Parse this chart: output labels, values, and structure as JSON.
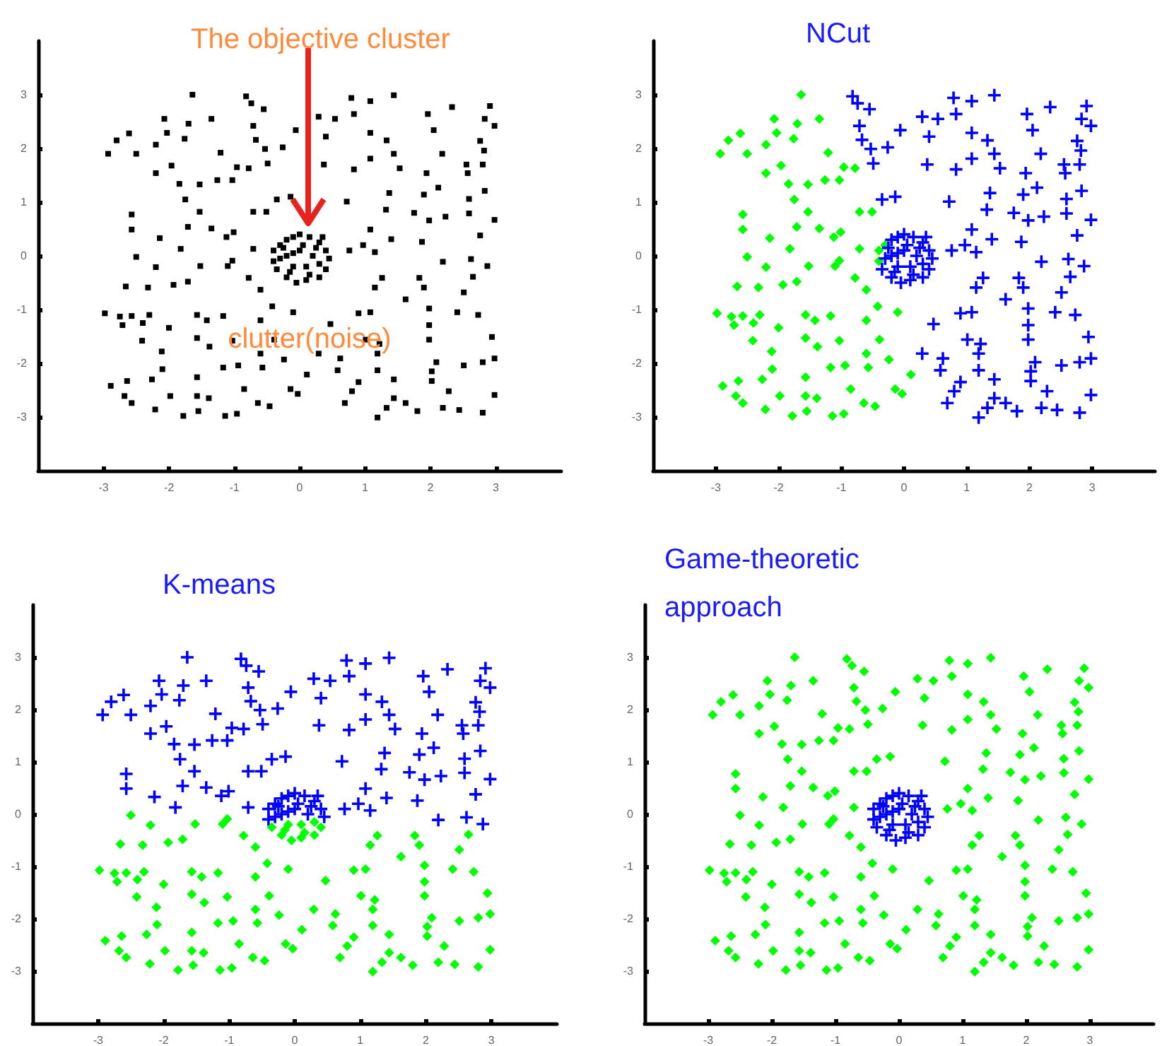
{
  "chart_data": [
    {
      "type": "scatter",
      "title": "The objective cluster",
      "xlim": [
        -4,
        4
      ],
      "ylim": [
        -4,
        4
      ],
      "xticks": [
        -3,
        -2,
        -1,
        0,
        1,
        2,
        3
      ],
      "yticks": [
        -3,
        -2,
        -1,
        0,
        1,
        2,
        3
      ],
      "marker": "square",
      "annotations": [
        "clutter(noise)"
      ],
      "series": [
        {
          "color": "#000000",
          "x": [
            -1.64,
            -0.82,
            -0.74,
            -0.55,
            0.79,
            1.08,
            1.44,
            2.91,
            2.33,
            1.96,
            0.83,
            0.29,
            0.54,
            -2.07,
            -1.35,
            -1.7,
            2.83,
            2.98,
            -0.71,
            -0.06,
            -2.61,
            -2.03,
            1.08,
            2.05,
            -2.8,
            -2.2,
            -1.76,
            -0.67,
            0.4,
            1.33,
            2.76,
            -2.93,
            -2.5,
            -1.21,
            -0.53,
            -0.26,
            1.44,
            2.18,
            2.82,
            -1.96,
            -0.96,
            -0.78,
            -0.49,
            0.37,
            1.08,
            1.94,
            2.55,
            2.8,
            -2.2,
            -1.26,
            -1.03,
            1.53,
            0.83,
            -1.84,
            -1.53,
            2.12,
            2.57,
            2.83,
            1.37,
            1.9,
            -1.75,
            -0.14,
            -0.35,
            0.72,
            2.59,
            -2.57,
            -1.53,
            -0.71,
            -0.51,
            1.32,
            1.75,
            2.23,
            2.59,
            1.98,
            2.98,
            -2.57,
            -1.71,
            -1.35,
            -1.01,
            -2.14,
            -1.12,
            1.08,
            2.76,
            1.4,
            1.87,
            -2.5,
            -1.82,
            -1.03,
            -0.71,
            0.76,
            0.97,
            1.15,
            2.19,
            2.62,
            2.87,
            -2.2,
            -1.52,
            -1.1,
            -0.78,
            1.26,
            1.83,
            2.65,
            -2.66,
            -2.32,
            -1.93,
            -1.71,
            -0.6,
            1.15,
            1.9,
            2.51,
            -2.98,
            -2.75,
            -2.57,
            -2.3,
            -1.57,
            -1.17,
            -0.42,
            -0.1,
            0.9,
            1.08,
            1.62,
            1.98,
            2.41,
            2.73,
            -2.71,
            -2.4,
            -2,
            -1.42,
            -0.6,
            0.47,
            1.98,
            -2.41,
            -1.57,
            -1.03,
            -0.39,
            1.01,
            1.22,
            1.98,
            2.94,
            -2.11,
            -1.38,
            -0.6,
            0.29,
            0.62,
            1.19,
            -1.17,
            -0.94,
            -0.57,
            -0.24,
            2.09,
            2.51,
            2.8,
            2.98,
            -2.1,
            0.11,
            0.58,
            1.19,
            2.02,
            -2.89,
            -2.64,
            -2.26,
            -1.57,
            -0.85,
            -0.14,
            -0.03,
            0.8,
            0.9,
            1.44,
            2.02,
            2.28,
            2.98,
            -2.68,
            -1.98,
            -1.57,
            -1.39,
            -0.64,
            -0.46,
            0.69,
            1.44,
            1.62,
            2.19,
            -2.57,
            -2.21,
            -1.78,
            -1.55,
            -1.14,
            -0.96,
            1.19,
            1.33,
            1.8,
            2.44,
            2.8,
            -0.4,
            -0.3,
            -0.2,
            -0.1,
            0,
            0.15,
            0.3,
            0.4,
            0.45,
            0.4,
            0.3,
            0.1,
            -0.05,
            -0.2,
            -0.35,
            -0.4,
            -0.2,
            0,
            0.2,
            0.1,
            -0.1,
            0.25,
            -0.25,
            0.05,
            0.3,
            -0.1,
            0.15,
            -0.3,
            0.35,
            -0.15
          ],
          "values": [
            3,
            2.97,
            2.84,
            2.73,
            2.94,
            2.88,
            2.99,
            2.79,
            2.77,
            2.64,
            2.64,
            2.59,
            2.55,
            2.55,
            2.55,
            2.46,
            2.55,
            2.42,
            2.42,
            2.34,
            2.28,
            2.29,
            2.29,
            2.34,
            2.15,
            2.07,
            2.18,
            2.16,
            2.22,
            2.15,
            2.14,
            1.9,
            1.9,
            1.92,
            1.99,
            2.02,
            1.9,
            1.9,
            1.96,
            1.68,
            1.65,
            1.63,
            1.72,
            1.7,
            1.81,
            1.54,
            1.7,
            1.7,
            1.54,
            1.41,
            1.41,
            1.63,
            1.61,
            1.34,
            1.33,
            1.27,
            1.54,
            1.21,
            1.17,
            1.14,
            1.05,
            1.1,
            1.05,
            1.01,
            1.06,
            0.77,
            0.82,
            0.82,
            0.82,
            0.86,
            0.8,
            0.73,
            0.79,
            0.66,
            0.67,
            0.49,
            0.54,
            0.51,
            0.44,
            0.33,
            0.35,
            0.49,
            0.38,
            0.31,
            0.26,
            -0.02,
            0.13,
            -0.09,
            0.13,
            0.1,
            0.2,
            0.07,
            -0.11,
            -0.06,
            -0.19,
            -0.21,
            -0.19,
            -0.19,
            -0.41,
            -0.41,
            -0.41,
            -0.39,
            -0.57,
            -0.59,
            -0.54,
            -0.48,
            -0.63,
            -0.59,
            -0.59,
            -0.68,
            -1.07,
            -1.13,
            -1.12,
            -1.1,
            -1.1,
            -1.12,
            -0.94,
            -1.05,
            -1.07,
            -1.05,
            -0.81,
            -0.98,
            -1.05,
            -1.1,
            -1.29,
            -1.25,
            -1.34,
            -1.2,
            -1.2,
            -1.27,
            -1.29,
            -1.58,
            -1.53,
            -1.58,
            -1.56,
            -1.56,
            -1.64,
            -1.56,
            -1.51,
            -1.78,
            -1.69,
            -1.82,
            -1.82,
            -1.91,
            -1.82,
            -2.08,
            -2.04,
            -2.08,
            -1.93,
            -1.98,
            -2.04,
            -1.98,
            -1.91,
            -2.11,
            -2.21,
            -2.13,
            -2.13,
            -2.15,
            -2.42,
            -2.33,
            -2.3,
            -2.26,
            -2.48,
            -2.48,
            -2.57,
            -2.52,
            -2.35,
            -2.3,
            -2.33,
            -2.52,
            -2.59,
            -2.61,
            -2.61,
            -2.61,
            -2.65,
            -2.74,
            -2.8,
            -2.74,
            -2.65,
            -2.74,
            -2.83,
            -2.74,
            -2.86,
            -2.98,
            -2.89,
            -2.98,
            -2.94,
            -3.01,
            -2.83,
            -2.89,
            -2.87,
            -2.92,
            0.1,
            0.2,
            0.3,
            0.35,
            0.4,
            0.35,
            0.25,
            0.1,
            -0.05,
            -0.25,
            -0.4,
            -0.45,
            -0.5,
            -0.4,
            -0.25,
            -0.1,
            0,
            0.1,
            0,
            -0.2,
            -0.2,
            0.15,
            0.15,
            0.2,
            -0.15,
            0.05,
            -0.35,
            -0.05,
            0.35,
            -0.3
          ]
        }
      ]
    },
    {
      "type": "scatter",
      "title": "NCut",
      "xlim": [
        -4,
        4
      ],
      "ylim": [
        -4,
        4
      ],
      "xticks": [
        -3,
        -2,
        -1,
        0,
        1,
        2,
        3
      ],
      "yticks": [
        -3,
        -2,
        -1,
        0,
        1,
        2,
        3
      ],
      "series": [
        {
          "color": "#00ff00",
          "marker": "diamond",
          "x": [
            -1.64,
            -2.07,
            -1.35,
            -1.7,
            -2.61,
            -2.03,
            -2.8,
            -2.2,
            -1.76,
            -2.93,
            -2.5,
            -1.21,
            -1.96,
            -0.96,
            -0.78,
            -2.2,
            -1.26,
            -1.03,
            -1.84,
            -1.53,
            -1.75,
            -2.57,
            -1.53,
            -0.71,
            -0.51,
            -2.57,
            -1.71,
            -1.35,
            -1.01,
            -2.14,
            -1.12,
            -2.5,
            -1.82,
            -1.03,
            -0.71,
            -2.2,
            -1.52,
            -1.1,
            -0.78,
            -2.66,
            -2.32,
            -1.93,
            -1.71,
            -0.6,
            -2.98,
            -2.75,
            -2.57,
            -2.3,
            -1.57,
            -1.17,
            -0.42,
            -0.1,
            -2.71,
            -2.4,
            -2,
            -1.42,
            -0.6,
            -2.41,
            -1.57,
            -1.03,
            -0.39,
            -2.11,
            -1.38,
            -0.6,
            -1.17,
            -0.94,
            -0.57,
            -0.24,
            -2.1,
            0.11,
            -2.89,
            -2.64,
            -2.26,
            -1.57,
            -0.85,
            -0.14,
            -0.03,
            -2.68,
            -1.98,
            -1.57,
            -1.39,
            -0.64,
            -0.46,
            -2.57,
            -2.21,
            -1.78,
            -1.55,
            -1.14,
            -0.96,
            -0.4,
            -0.3,
            -0.4
          ],
          "values": [
            3,
            2.55,
            2.55,
            2.46,
            2.28,
            2.29,
            2.15,
            2.07,
            2.18,
            1.9,
            1.9,
            1.92,
            1.68,
            1.65,
            1.63,
            1.54,
            1.41,
            1.41,
            1.34,
            1.33,
            1.05,
            0.77,
            0.82,
            0.82,
            0.82,
            0.49,
            0.54,
            0.51,
            0.44,
            0.33,
            0.35,
            -0.02,
            0.13,
            -0.09,
            0.13,
            -0.21,
            -0.19,
            -0.19,
            -0.41,
            -0.57,
            -0.59,
            -0.54,
            -0.48,
            -0.63,
            -1.07,
            -1.13,
            -1.12,
            -1.1,
            -1.1,
            -1.12,
            -0.94,
            -1.05,
            -1.29,
            -1.25,
            -1.34,
            -1.2,
            -1.2,
            -1.58,
            -1.53,
            -1.58,
            -1.56,
            -1.78,
            -1.69,
            -1.82,
            -2.08,
            -2.04,
            -2.08,
            -1.93,
            -2.11,
            -2.21,
            -2.42,
            -2.33,
            -2.3,
            -2.26,
            -2.48,
            -2.48,
            -2.57,
            -2.61,
            -2.61,
            -2.61,
            -2.65,
            -2.74,
            -2.8,
            -2.74,
            -2.86,
            -2.98,
            -2.89,
            -2.98,
            -2.94,
            0.1,
            0.2,
            -0.1
          ]
        },
        {
          "color": "#0000ff",
          "marker": "cross",
          "x": [
            -0.82,
            -0.74,
            -0.55,
            0.79,
            1.08,
            1.44,
            2.91,
            2.33,
            1.96,
            0.83,
            0.29,
            0.54,
            2.83,
            2.98,
            -0.71,
            -0.06,
            1.08,
            2.05,
            -0.67,
            0.4,
            1.33,
            2.76,
            -0.53,
            -0.26,
            1.44,
            2.18,
            2.82,
            -0.49,
            0.37,
            1.08,
            1.94,
            2.55,
            2.8,
            1.53,
            0.83,
            2.12,
            2.57,
            2.83,
            1.37,
            1.9,
            -0.14,
            -0.35,
            0.72,
            2.59,
            1.32,
            1.75,
            2.23,
            2.59,
            1.98,
            2.98,
            1.08,
            2.76,
            1.4,
            1.87,
            0.76,
            0.97,
            1.15,
            2.19,
            2.62,
            2.87,
            1.26,
            1.83,
            2.65,
            1.15,
            1.9,
            2.51,
            0.9,
            1.08,
            1.62,
            1.98,
            2.41,
            2.73,
            0.47,
            1.98,
            1.01,
            1.22,
            1.98,
            2.94,
            0.29,
            0.62,
            1.19,
            2.09,
            2.51,
            2.8,
            2.98,
            0.58,
            1.19,
            2.02,
            0.8,
            0.9,
            1.44,
            2.02,
            2.28,
            2.98,
            0.69,
            1.44,
            1.62,
            2.19,
            1.19,
            1.33,
            1.8,
            2.44,
            2.8,
            -0.2,
            -0.1,
            0,
            0.15,
            0.3,
            0.4,
            0.45,
            0.4,
            0.3,
            0.1,
            -0.05,
            -0.2,
            -0.35,
            -0.2,
            0,
            0.2,
            0.1,
            -0.1,
            0.25,
            -0.25,
            0.05,
            0.3,
            -0.1,
            0.15,
            -0.3,
            0.35,
            -0.15
          ],
          "values": [
            2.97,
            2.84,
            2.73,
            2.94,
            2.88,
            2.99,
            2.79,
            2.77,
            2.64,
            2.64,
            2.59,
            2.55,
            2.55,
            2.42,
            2.42,
            2.34,
            2.29,
            2.34,
            2.16,
            2.22,
            2.15,
            2.14,
            1.99,
            2.02,
            1.9,
            1.9,
            1.96,
            1.72,
            1.7,
            1.81,
            1.54,
            1.7,
            1.7,
            1.63,
            1.61,
            1.27,
            1.54,
            1.21,
            1.17,
            1.14,
            1.1,
            1.05,
            1.01,
            1.06,
            0.86,
            0.8,
            0.73,
            0.79,
            0.66,
            0.67,
            0.49,
            0.38,
            0.31,
            0.26,
            0.1,
            0.2,
            0.07,
            -0.11,
            -0.06,
            -0.19,
            -0.41,
            -0.41,
            -0.39,
            -0.59,
            -0.59,
            -0.68,
            -1.07,
            -1.05,
            -0.81,
            -0.98,
            -1.05,
            -1.1,
            -1.27,
            -1.29,
            -1.56,
            -1.64,
            -1.56,
            -1.51,
            -1.82,
            -1.91,
            -1.82,
            -1.98,
            -2.04,
            -1.98,
            -1.91,
            -2.13,
            -2.13,
            -2.15,
            -2.52,
            -2.35,
            -2.3,
            -2.33,
            -2.52,
            -2.59,
            -2.74,
            -2.65,
            -2.74,
            -2.83,
            -3.01,
            -2.83,
            -2.89,
            -2.87,
            -2.92,
            0.3,
            0.35,
            0.4,
            0.35,
            0.25,
            0.1,
            -0.05,
            -0.25,
            -0.4,
            -0.45,
            -0.5,
            -0.4,
            -0.25,
            0,
            0.1,
            0,
            -0.2,
            -0.2,
            0.15,
            0.15,
            0.2,
            -0.15,
            0.05,
            -0.35,
            -0.05,
            0.35,
            -0.3
          ]
        }
      ]
    },
    {
      "type": "scatter",
      "title": "K-means",
      "xlim": [
        -4,
        4
      ],
      "ylim": [
        -4,
        4
      ],
      "xticks": [
        -3,
        -2,
        -1,
        0,
        1,
        2,
        3
      ],
      "yticks": [
        -3,
        -2,
        -1,
        0,
        1,
        2,
        3
      ],
      "series": [
        {
          "color": "#0000ff",
          "marker": "cross",
          "x": [
            -1.64,
            -0.82,
            -0.74,
            -0.55,
            0.79,
            1.08,
            1.44,
            2.91,
            2.33,
            1.96,
            0.83,
            0.29,
            0.54,
            -2.07,
            -1.35,
            -1.7,
            2.83,
            2.98,
            -0.71,
            -0.06,
            -2.61,
            -2.03,
            1.08,
            2.05,
            -2.8,
            -2.2,
            -1.76,
            -0.67,
            0.4,
            1.33,
            2.76,
            -2.93,
            -2.5,
            -1.21,
            -0.53,
            -0.26,
            1.44,
            2.18,
            2.82,
            -1.96,
            -0.96,
            -0.78,
            -0.49,
            0.37,
            1.08,
            1.94,
            2.55,
            2.8,
            -2.2,
            -1.26,
            -1.03,
            1.53,
            0.83,
            -1.84,
            -1.53,
            2.12,
            2.57,
            2.83,
            1.37,
            1.9,
            -1.75,
            -0.14,
            -0.35,
            0.72,
            2.59,
            -2.57,
            -1.53,
            -0.71,
            -0.51,
            1.32,
            1.75,
            2.23,
            2.59,
            1.98,
            2.98,
            -2.57,
            -1.71,
            -1.35,
            -1.01,
            -2.14,
            -1.12,
            1.08,
            2.76,
            1.4,
            1.87,
            -1.82,
            -0.71,
            0.76,
            0.97,
            1.15,
            2.19,
            2.62,
            2.87,
            -0.4,
            -0.3,
            -0.2,
            -0.1,
            0,
            0.15,
            0.3,
            0.4,
            0.45,
            -0.4,
            -0.2,
            0,
            0.2,
            0.25,
            -0.25,
            0.05,
            -0.1,
            -0.3,
            0.35
          ],
          "values": [
            3,
            2.97,
            2.84,
            2.73,
            2.94,
            2.88,
            2.99,
            2.79,
            2.77,
            2.64,
            2.64,
            2.59,
            2.55,
            2.55,
            2.55,
            2.46,
            2.55,
            2.42,
            2.42,
            2.34,
            2.28,
            2.29,
            2.29,
            2.34,
            2.15,
            2.07,
            2.18,
            2.16,
            2.22,
            2.15,
            2.14,
            1.9,
            1.9,
            1.92,
            1.99,
            2.02,
            1.9,
            1.9,
            1.96,
            1.68,
            1.65,
            1.63,
            1.72,
            1.7,
            1.81,
            1.54,
            1.7,
            1.7,
            1.54,
            1.41,
            1.41,
            1.63,
            1.61,
            1.34,
            1.33,
            1.27,
            1.54,
            1.21,
            1.17,
            1.14,
            1.05,
            1.1,
            1.05,
            1.01,
            1.06,
            0.77,
            0.82,
            0.82,
            0.82,
            0.86,
            0.8,
            0.73,
            0.79,
            0.66,
            0.67,
            0.49,
            0.54,
            0.51,
            0.44,
            0.33,
            0.35,
            0.49,
            0.38,
            0.31,
            0.26,
            0.13,
            0.13,
            0.1,
            0.2,
            0.07,
            -0.11,
            -0.06,
            -0.19,
            0.1,
            0.2,
            0.3,
            0.35,
            0.4,
            0.35,
            0.25,
            0.1,
            -0.05,
            -0.1,
            0,
            0.1,
            0,
            0.15,
            0.15,
            0.2,
            0.05,
            -0.05,
            0.35
          ]
        },
        {
          "color": "#00ff00",
          "marker": "diamond",
          "x": [
            -2.5,
            -1.03,
            -2.2,
            -1.52,
            -1.1,
            -0.78,
            1.26,
            1.83,
            2.65,
            -2.66,
            -2.32,
            -1.93,
            -1.71,
            -0.6,
            1.15,
            1.9,
            2.51,
            -2.98,
            -2.75,
            -2.57,
            -2.3,
            -1.57,
            -1.17,
            -0.42,
            -0.1,
            0.9,
            1.08,
            1.62,
            1.98,
            2.41,
            2.73,
            -2.71,
            -2.4,
            -2,
            -1.42,
            -0.6,
            0.47,
            1.98,
            -2.41,
            -1.57,
            -1.03,
            -0.39,
            1.01,
            1.22,
            1.98,
            2.94,
            -2.11,
            -1.38,
            -0.6,
            0.29,
            0.62,
            1.19,
            -1.17,
            -0.94,
            -0.57,
            -0.24,
            2.09,
            2.51,
            2.8,
            2.98,
            -2.1,
            0.11,
            0.58,
            1.19,
            2.02,
            -2.89,
            -2.64,
            -2.26,
            -1.57,
            -0.85,
            -0.14,
            -0.03,
            0.8,
            0.9,
            1.44,
            2.02,
            2.28,
            2.98,
            -2.68,
            -1.98,
            -1.57,
            -1.39,
            -0.64,
            -0.46,
            0.69,
            1.44,
            1.62,
            2.19,
            -2.57,
            -2.21,
            -1.78,
            -1.55,
            -1.14,
            -0.96,
            1.19,
            1.33,
            1.8,
            2.44,
            2.8,
            0.4,
            0.3,
            0.1,
            -0.05,
            -0.2,
            -0.35,
            0.1,
            -0.1,
            0.3,
            0.15,
            -0.15
          ],
          "values": [
            -0.02,
            -0.09,
            -0.21,
            -0.19,
            -0.19,
            -0.41,
            -0.41,
            -0.41,
            -0.39,
            -0.57,
            -0.59,
            -0.54,
            -0.48,
            -0.63,
            -0.59,
            -0.59,
            -0.68,
            -1.07,
            -1.13,
            -1.12,
            -1.1,
            -1.1,
            -1.12,
            -0.94,
            -1.05,
            -1.07,
            -1.05,
            -0.81,
            -0.98,
            -1.05,
            -1.1,
            -1.29,
            -1.25,
            -1.34,
            -1.2,
            -1.2,
            -1.27,
            -1.29,
            -1.58,
            -1.53,
            -1.58,
            -1.56,
            -1.56,
            -1.64,
            -1.56,
            -1.51,
            -1.78,
            -1.69,
            -1.82,
            -1.82,
            -1.91,
            -1.82,
            -2.08,
            -2.04,
            -2.08,
            -1.93,
            -1.98,
            -2.04,
            -1.98,
            -1.91,
            -2.11,
            -2.21,
            -2.13,
            -2.13,
            -2.15,
            -2.42,
            -2.33,
            -2.3,
            -2.26,
            -2.48,
            -2.48,
            -2.57,
            -2.52,
            -2.35,
            -2.3,
            -2.33,
            -2.52,
            -2.59,
            -2.61,
            -2.61,
            -2.61,
            -2.65,
            -2.74,
            -2.8,
            -2.74,
            -2.65,
            -2.74,
            -2.83,
            -2.74,
            -2.86,
            -2.98,
            -2.89,
            -2.98,
            -2.94,
            -3.01,
            -2.83,
            -2.89,
            -2.87,
            -2.92,
            -0.25,
            -0.4,
            -0.45,
            -0.5,
            -0.4,
            -0.25,
            -0.2,
            -0.2,
            -0.15,
            -0.35,
            -0.3
          ]
        }
      ]
    },
    {
      "type": "scatter",
      "title": "Game-theoretic approach",
      "xlim": [
        -4,
        4
      ],
      "ylim": [
        -4,
        4
      ],
      "xticks": [
        -3,
        -2,
        -1,
        0,
        1,
        2,
        3
      ],
      "yticks": [
        -3,
        -2,
        -1,
        0,
        1,
        2,
        3
      ],
      "series": [
        {
          "color": "#00ff00",
          "marker": "diamond",
          "x": [
            -1.64,
            -0.82,
            -0.74,
            -0.55,
            0.79,
            1.08,
            1.44,
            2.91,
            2.33,
            1.96,
            0.83,
            0.29,
            0.54,
            -2.07,
            -1.35,
            -1.7,
            2.83,
            2.98,
            -0.71,
            -0.06,
            -2.61,
            -2.03,
            1.08,
            2.05,
            -2.8,
            -2.2,
            -1.76,
            -0.67,
            0.4,
            1.33,
            2.76,
            -2.93,
            -2.5,
            -1.21,
            -0.53,
            -0.26,
            1.44,
            2.18,
            2.82,
            -1.96,
            -0.96,
            -0.78,
            -0.49,
            0.37,
            1.08,
            1.94,
            2.55,
            2.8,
            -2.2,
            -1.26,
            -1.03,
            1.53,
            0.83,
            -1.84,
            -1.53,
            2.12,
            2.57,
            2.83,
            1.37,
            1.9,
            -1.75,
            -0.14,
            -0.35,
            0.72,
            2.59,
            -2.57,
            -1.53,
            -0.71,
            -0.51,
            1.32,
            1.75,
            2.23,
            2.59,
            1.98,
            2.98,
            -2.57,
            -1.71,
            -1.35,
            -1.01,
            -2.14,
            -1.12,
            1.08,
            2.76,
            1.4,
            1.87,
            -2.5,
            -1.82,
            -1.03,
            -0.71,
            0.76,
            0.97,
            1.15,
            2.19,
            2.62,
            2.87,
            -2.2,
            -1.52,
            -1.1,
            -0.78,
            1.26,
            1.83,
            2.65,
            -2.66,
            -2.32,
            -1.93,
            -1.71,
            -0.6,
            1.15,
            1.9,
            2.51,
            -2.98,
            -2.75,
            -2.57,
            -2.3,
            -1.57,
            -1.17,
            -0.42,
            -0.1,
            0.9,
            1.08,
            1.62,
            1.98,
            2.41,
            2.73,
            -2.71,
            -2.4,
            -2,
            -1.42,
            -0.6,
            0.47,
            1.98,
            -2.41,
            -1.57,
            -1.03,
            -0.39,
            1.01,
            1.22,
            1.98,
            2.94,
            -2.11,
            -1.38,
            -0.6,
            0.29,
            0.62,
            1.19,
            -1.17,
            -0.94,
            -0.57,
            -0.24,
            2.09,
            2.51,
            2.8,
            2.98,
            -2.1,
            0.11,
            0.58,
            1.19,
            2.02,
            -2.89,
            -2.64,
            -2.26,
            -1.57,
            -0.85,
            -0.14,
            -0.03,
            0.8,
            0.9,
            1.44,
            2.02,
            2.28,
            2.98,
            -2.68,
            -1.98,
            -1.57,
            -1.39,
            -0.64,
            -0.46,
            0.69,
            1.44,
            1.62,
            2.19,
            -2.57,
            -2.21,
            -1.78,
            -1.55,
            -1.14,
            -0.96,
            1.19,
            1.33,
            1.8,
            2.44,
            2.8
          ],
          "values": [
            3,
            2.97,
            2.84,
            2.73,
            2.94,
            2.88,
            2.99,
            2.79,
            2.77,
            2.64,
            2.64,
            2.59,
            2.55,
            2.55,
            2.55,
            2.46,
            2.55,
            2.42,
            2.42,
            2.34,
            2.28,
            2.29,
            2.29,
            2.34,
            2.15,
            2.07,
            2.18,
            2.16,
            2.22,
            2.15,
            2.14,
            1.9,
            1.9,
            1.92,
            1.99,
            2.02,
            1.9,
            1.9,
            1.96,
            1.68,
            1.65,
            1.63,
            1.72,
            1.7,
            1.81,
            1.54,
            1.7,
            1.7,
            1.54,
            1.41,
            1.41,
            1.63,
            1.61,
            1.34,
            1.33,
            1.27,
            1.54,
            1.21,
            1.17,
            1.14,
            1.05,
            1.1,
            1.05,
            1.01,
            1.06,
            0.77,
            0.82,
            0.82,
            0.82,
            0.86,
            0.8,
            0.73,
            0.79,
            0.66,
            0.67,
            0.49,
            0.54,
            0.51,
            0.44,
            0.33,
            0.35,
            0.49,
            0.38,
            0.31,
            0.26,
            -0.02,
            0.13,
            -0.09,
            0.13,
            0.1,
            0.2,
            0.07,
            -0.11,
            -0.06,
            -0.19,
            -0.21,
            -0.19,
            -0.19,
            -0.41,
            -0.41,
            -0.41,
            -0.39,
            -0.57,
            -0.59,
            -0.54,
            -0.48,
            -0.63,
            -0.59,
            -0.59,
            -0.68,
            -1.07,
            -1.13,
            -1.12,
            -1.1,
            -1.1,
            -1.12,
            -0.94,
            -1.05,
            -1.07,
            -1.05,
            -0.81,
            -0.98,
            -1.05,
            -1.1,
            -1.29,
            -1.25,
            -1.34,
            -1.2,
            -1.2,
            -1.27,
            -1.29,
            -1.58,
            -1.53,
            -1.58,
            -1.56,
            -1.56,
            -1.64,
            -1.56,
            -1.51,
            -1.78,
            -1.69,
            -1.82,
            -1.82,
            -1.91,
            -1.82,
            -2.08,
            -2.04,
            -2.08,
            -1.93,
            -1.98,
            -2.04,
            -1.98,
            -1.91,
            -2.11,
            -2.21,
            -2.13,
            -2.13,
            -2.15,
            -2.42,
            -2.33,
            -2.3,
            -2.26,
            -2.48,
            -2.48,
            -2.57,
            -2.52,
            -2.35,
            -2.3,
            -2.33,
            -2.52,
            -2.59,
            -2.61,
            -2.61,
            -2.61,
            -2.65,
            -2.74,
            -2.8,
            -2.74,
            -2.65,
            -2.74,
            -2.83,
            -2.74,
            -2.86,
            -2.98,
            -2.89,
            -2.98,
            -2.94,
            -3.01,
            -2.83,
            -2.89,
            -2.87,
            -2.92
          ]
        },
        {
          "color": "#0000ff",
          "marker": "cross",
          "x": [
            -0.4,
            -0.3,
            -0.2,
            -0.1,
            0,
            0.15,
            0.3,
            0.4,
            0.45,
            0.4,
            0.3,
            0.1,
            -0.05,
            -0.2,
            -0.35,
            -0.4,
            -0.2,
            0,
            0.2,
            0.1,
            -0.1,
            0.25,
            -0.25,
            0.05,
            0.3,
            -0.1,
            0.15,
            -0.3,
            0.35,
            -0.15
          ],
          "values": [
            0.1,
            0.2,
            0.3,
            0.35,
            0.4,
            0.35,
            0.25,
            0.1,
            -0.05,
            -0.25,
            -0.4,
            -0.45,
            -0.5,
            -0.4,
            -0.25,
            -0.1,
            0,
            0.1,
            0,
            -0.2,
            -0.2,
            0.15,
            0.15,
            0.2,
            -0.15,
            0.05,
            -0.35,
            -0.05,
            0.35,
            -0.3
          ]
        }
      ]
    }
  ]
}
